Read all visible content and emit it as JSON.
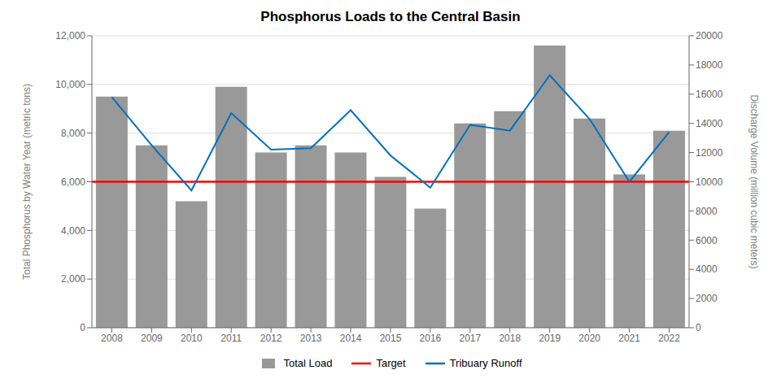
{
  "chart_data": {
    "type": "bar",
    "title": "Phosphorus Loads to the Central Basin",
    "categories": [
      "2008",
      "2009",
      "2010",
      "2011",
      "2012",
      "2013",
      "2014",
      "2015",
      "2016",
      "2017",
      "2018",
      "2019",
      "2020",
      "2021",
      "2022"
    ],
    "series": [
      {
        "name": "Total Load",
        "type": "bar",
        "color": "#999999",
        "values": [
          9500,
          7500,
          5200,
          9900,
          7200,
          7500,
          7200,
          6200,
          4900,
          8400,
          8900,
          11600,
          8600,
          6300,
          8100
        ]
      },
      {
        "name": "Target",
        "type": "hline",
        "color": "#FF0000",
        "value": 6000
      },
      {
        "name": "Tribuary Runoff",
        "type": "line",
        "color": "#0070C0",
        "axis": "y2",
        "values": [
          15800,
          12500,
          9400,
          14700,
          12200,
          12300,
          14900,
          11800,
          9600,
          13900,
          13500,
          17300,
          14300,
          10000,
          13400
        ]
      }
    ],
    "ylabel": "Total Phosphorus by Water Year (metric tons)",
    "y2label": "Discharge Volume (million cubic meters)",
    "ylim": [
      0,
      12000
    ],
    "y2lim": [
      0,
      20000
    ],
    "yticks": [
      0,
      {
        "value": 2000,
        "label": "2,000"
      },
      {
        "value": 4000,
        "label": "4,000"
      },
      {
        "value": 6000,
        "label": "6,000"
      },
      {
        "value": 8000,
        "label": "8,000"
      },
      {
        "value": 10000,
        "label": "10,000"
      },
      {
        "value": 12000,
        "label": "12,000"
      }
    ],
    "y2ticks": [
      0,
      2000,
      4000,
      6000,
      8000,
      10000,
      12000,
      14000,
      16000,
      18000,
      20000
    ],
    "grid": true,
    "legend": "bottom"
  }
}
